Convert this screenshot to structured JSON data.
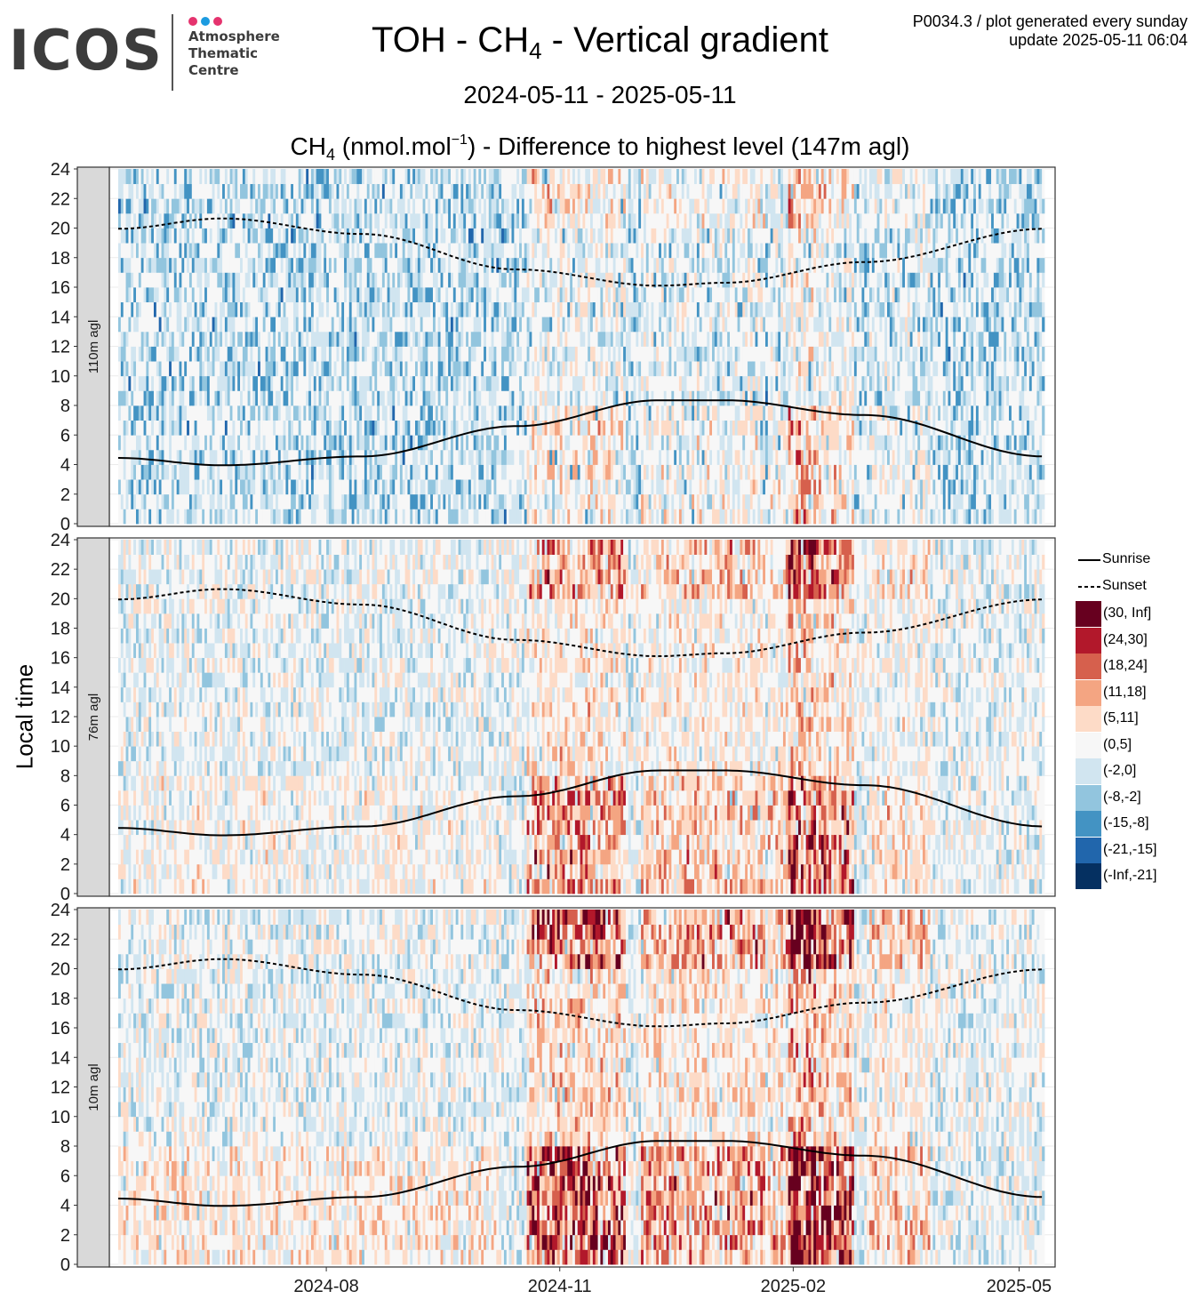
{
  "logo": {
    "name": "ICOS",
    "subtitle_lines": [
      "Atmosphere",
      "Thematic",
      "Centre"
    ],
    "dot_colors": [
      "#e5336e",
      "#1c9be0",
      "#e5336e"
    ]
  },
  "header": {
    "title_pre": "TOH - CH",
    "title_sub": "4",
    "title_post": " - Vertical gradient",
    "meta_line1": "P0034.3 / plot generated every sunday",
    "meta_line2": "update  2025-05-11 06:04",
    "date_range": "2024-05-11 - 2025-05-11",
    "subtitle_pre": "CH",
    "subtitle_sub": "4",
    "subtitle_unit_pre": " (nmol.mol",
    "subtitle_sup": "−1",
    "subtitle_post": ") - Difference to highest level (147m agl)"
  },
  "chart_data": {
    "type": "heatmap",
    "ylabel": "Local time",
    "xlabel": "",
    "x_range": [
      "2024-05-11",
      "2025-05-11"
    ],
    "y_range": [
      0,
      24
    ],
    "y_ticks": [
      0,
      2,
      4,
      6,
      8,
      10,
      12,
      14,
      16,
      18,
      20,
      22,
      24
    ],
    "x_ticks": [
      "2024-08",
      "2024-11",
      "2025-02",
      "2025-05"
    ],
    "grid": true,
    "legend_position": "right",
    "facets": [
      "110m agl",
      "76m agl",
      "10m agl"
    ],
    "sun_lines": [
      {
        "name": "Sunrise",
        "style": "solid",
        "dates": [
          "2024-05-11",
          "2024-06-21",
          "2024-08-15",
          "2024-10-15",
          "2024-12-10",
          "2025-01-05",
          "2025-03-01",
          "2025-05-11"
        ],
        "hours": [
          4.45,
          3.95,
          4.55,
          6.6,
          8.35,
          8.35,
          7.35,
          4.55
        ]
      },
      {
        "name": "Sunset",
        "style": "dashed",
        "dates": [
          "2024-05-11",
          "2024-06-21",
          "2024-08-15",
          "2024-10-15",
          "2024-12-10",
          "2025-01-05",
          "2025-03-01",
          "2025-05-11"
        ],
        "hours": [
          19.95,
          20.65,
          19.6,
          17.2,
          16.1,
          16.3,
          17.7,
          19.95
        ]
      }
    ],
    "color_bins": [
      {
        "label": "(30, Inf]",
        "color": "#67001f"
      },
      {
        "label": "(24,30]",
        "color": "#b2182b"
      },
      {
        "label": "(18,24]",
        "color": "#d6604d"
      },
      {
        "label": "(11,18]",
        "color": "#f4a582"
      },
      {
        "label": "(5,11]",
        "color": "#fddbc7"
      },
      {
        "label": "(0,5]",
        "color": "#f7f7f7"
      },
      {
        "label": "(-2,0]",
        "color": "#d1e5f0"
      },
      {
        "label": "(-8,-2]",
        "color": "#92c5de"
      },
      {
        "label": "(-15,-8]",
        "color": "#4393c3"
      },
      {
        "label": "(-21,-15]",
        "color": "#2166ac"
      },
      {
        "label": "(-Inf,-21]",
        "color": "#053061"
      }
    ]
  },
  "legend": {
    "sunrise_label": "Sunrise",
    "sunset_label": "Sunset"
  }
}
